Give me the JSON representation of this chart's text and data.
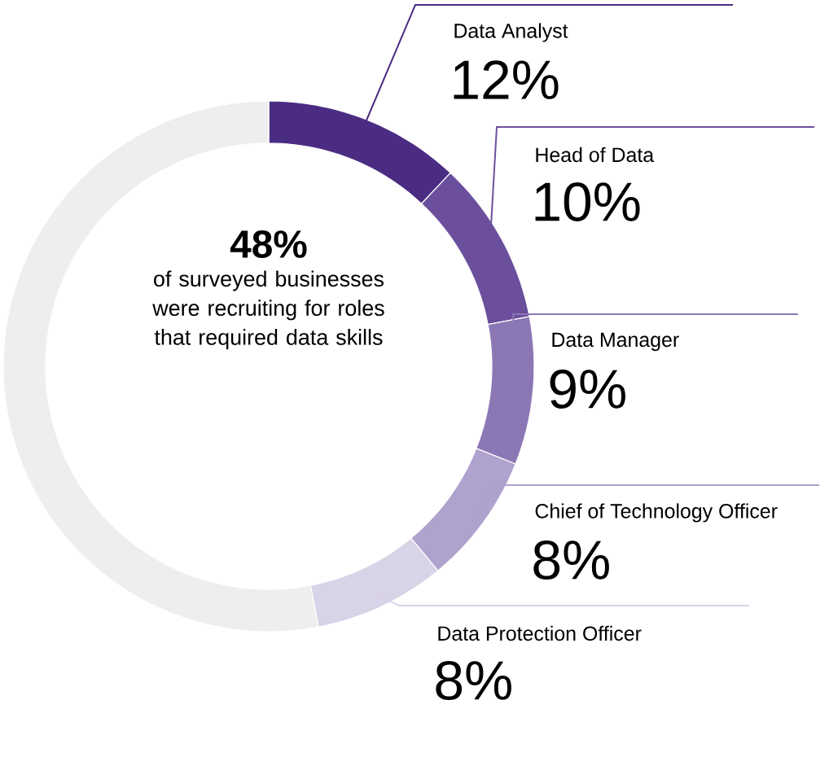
{
  "chart_data": {
    "type": "donut",
    "categories": [
      "Data Analyst",
      "Head of Data",
      "Data Manager",
      "Chief of Technology Officer",
      "Data Protection Officer",
      null
    ],
    "values": [
      12,
      10,
      9,
      8,
      8,
      53
    ],
    "value_labels": [
      "12%",
      "10%",
      "9%",
      "8%",
      "8%",
      null
    ],
    "colors": [
      "#4b2c83",
      "#6b4f9c",
      "#8c77b5",
      "#afa2cd",
      "#d9d3e7",
      "#efeeee"
    ],
    "annotations": [
      "48%",
      "of surveyed businesses were recruiting for roles that required data skills"
    ]
  }
}
